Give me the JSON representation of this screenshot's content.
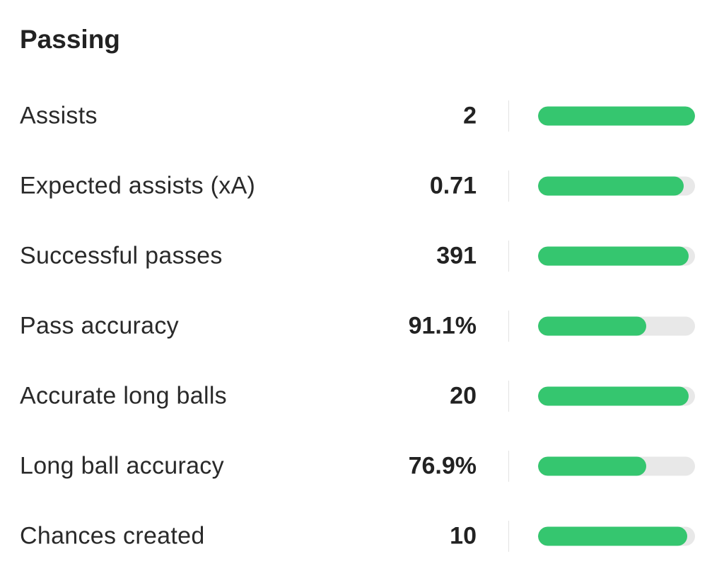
{
  "section": {
    "title": "Passing"
  },
  "colors": {
    "bar_fill": "#35c66f",
    "bar_track": "#e8e8e8"
  },
  "stats": [
    {
      "label": "Assists",
      "value": "2",
      "fill_fraction": 1.0
    },
    {
      "label": "Expected assists (xA)",
      "value": "0.71",
      "fill_fraction": 0.93
    },
    {
      "label": "Successful passes",
      "value": "391",
      "fill_fraction": 0.96
    },
    {
      "label": "Pass accuracy",
      "value": "91.1%",
      "fill_fraction": 0.69
    },
    {
      "label": "Accurate long balls",
      "value": "20",
      "fill_fraction": 0.96
    },
    {
      "label": "Long ball accuracy",
      "value": "76.9%",
      "fill_fraction": 0.69
    },
    {
      "label": "Chances created",
      "value": "10",
      "fill_fraction": 0.95
    }
  ]
}
